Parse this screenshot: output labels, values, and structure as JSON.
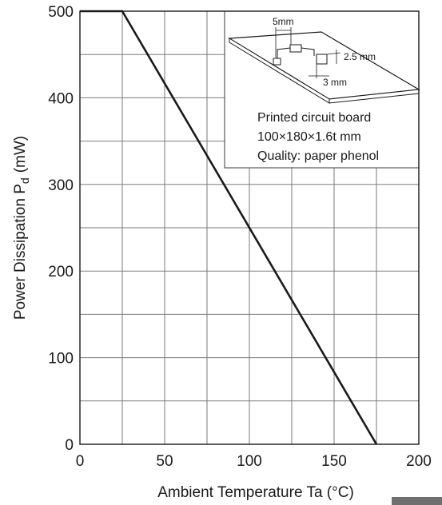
{
  "chart_data": {
    "type": "line",
    "xlabel": "Ambient Temperature Ta (°C)",
    "ylabel_main": "Power Dissipation P",
    "ylabel_sub": "d",
    "ylabel_unit": "(mW)",
    "xlim": [
      0,
      200
    ],
    "ylim": [
      0,
      500
    ],
    "x_ticks": [
      0,
      50,
      100,
      150,
      200
    ],
    "y_ticks": [
      0,
      100,
      200,
      300,
      400,
      500
    ],
    "x_ticks_labels": [
      "0",
      "50",
      "100",
      "150",
      "200"
    ],
    "y_ticks_labels": [
      "0",
      "100",
      "200",
      "300",
      "400",
      "500"
    ],
    "grid": true,
    "series": [
      {
        "x": [
          0,
          25,
          175
        ],
        "y": [
          500,
          500,
          0
        ]
      }
    ],
    "inset": {
      "lines": [
        "Printed circuit board",
        "100×180×1.6t mm",
        "Quality: paper phenol"
      ],
      "dimensions": [
        "5mm",
        "2.5 mm",
        "3 mm"
      ]
    }
  },
  "colors": {
    "line": "#1a1a1a",
    "grid": "#7a7a7a",
    "axis": "#1a1a1a",
    "inset_board": "#ffffff"
  }
}
